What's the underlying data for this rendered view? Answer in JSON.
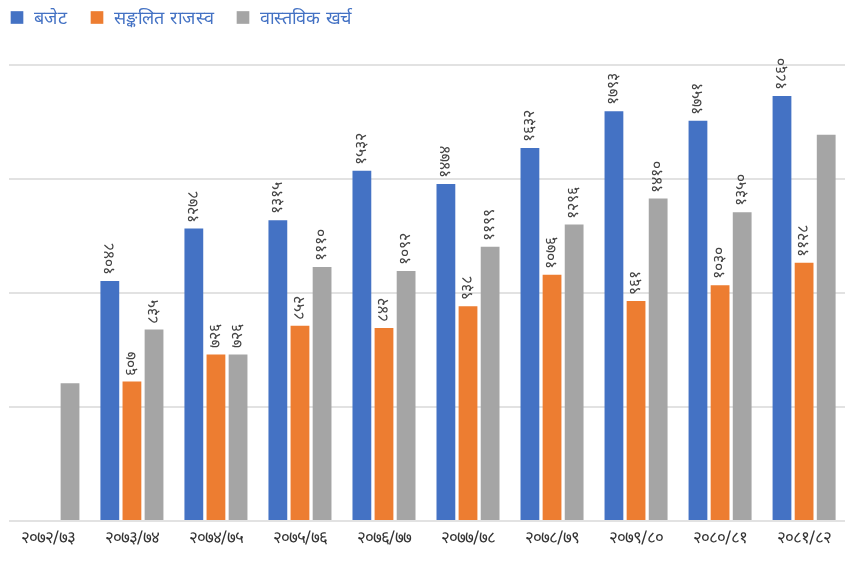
{
  "chart_data": {
    "type": "bar",
    "categories": [
      "२०७२/७३",
      "२०७३/७४",
      "२०७४/७५",
      "२०७५/७६",
      "२०७६/७७",
      "२०७७/७८",
      "२०७८/७९",
      "२०७९/८०",
      "२०८०/८१",
      "२०८१/८२"
    ],
    "series": [
      {
        "name": "बजेट",
        "color": "#4472c4",
        "values": [
          null,
          1048,
          1278,
          1315,
          1532,
          1474,
          1632,
          1793,
          1751,
          1860
        ],
        "value_labels": [
          null,
          "१०४८",
          "१२७८",
          "१३१५",
          "१५३२",
          "१४७४",
          "१६३२",
          "१७९३",
          "१७५१",
          "१८६०"
        ]
      },
      {
        "name": "सङ्कलित राजस्व",
        "color": "#ed7d31",
        "values": [
          null,
          607,
          726,
          852,
          842,
          938,
          1076,
          961,
          1030,
          1128
        ],
        "value_labels": [
          null,
          "६०७",
          "७२६",
          "८५२",
          "८४२",
          "९३८",
          "१०७६",
          "९६१",
          "१०३०",
          "११२८"
        ]
      },
      {
        "name": "वास्तविक खर्च",
        "color": "#a5a5a5",
        "values": [
          600,
          835,
          726,
          1110,
          1092,
          1199,
          1296,
          1410,
          1350,
          1690
        ],
        "value_labels": [
          null,
          "८३५",
          "७२६",
          "१११०",
          "१०९२",
          "११९९",
          "१२९६",
          "१४१०",
          "१३५०",
          null
        ]
      }
    ],
    "ylim": [
      0,
      2000
    ],
    "yticks": [
      {
        "value": 0,
        "label": null
      },
      {
        "value": 500,
        "label": null
      },
      {
        "value": 1000,
        "label": null
      },
      {
        "value": 1500,
        "label": null
      },
      {
        "value": 2000,
        "label": null
      }
    ],
    "grid": "y",
    "legend": "top",
    "tick_labels": "x"
  }
}
